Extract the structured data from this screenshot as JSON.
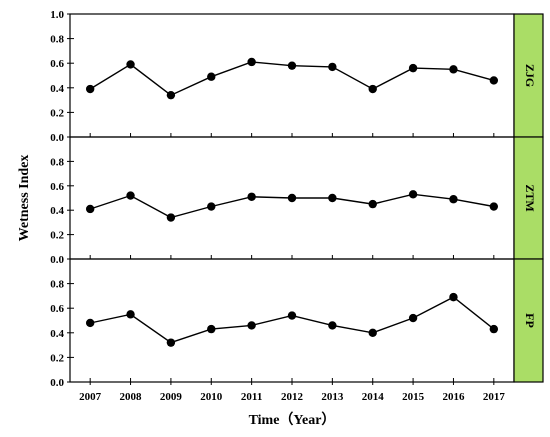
{
  "chart_data": {
    "type": "line",
    "layout": "faceted-vertical",
    "x": [
      2007,
      2008,
      2009,
      2010,
      2011,
      2012,
      2013,
      2014,
      2015,
      2016,
      2017
    ],
    "xlabel": "Time（Year）",
    "ylabel": "Wetness Index",
    "x_tick_labels": [
      "2007",
      "2008",
      "2009",
      "2010",
      "2011",
      "2012",
      "2013",
      "2014",
      "2015",
      "2016",
      "2017"
    ],
    "strip_color": "#aadd66",
    "line_color": "#000000",
    "marker": "filled-circle",
    "panels": [
      {
        "name": "ZJG",
        "ylim": [
          0,
          1.0
        ],
        "y_tick_labels": [
          "0.0",
          "0.2",
          "0.4",
          "0.6",
          "0.8",
          "1.0"
        ],
        "values": [
          0.39,
          0.59,
          0.34,
          0.49,
          0.61,
          0.58,
          0.57,
          0.39,
          0.56,
          0.55,
          0.46
        ]
      },
      {
        "name": "ZTM",
        "ylim": [
          0,
          1.0
        ],
        "y_tick_labels": [
          "0.0",
          "0.2",
          "0.4",
          "0.6",
          "0.8"
        ],
        "values": [
          0.41,
          0.52,
          0.34,
          0.43,
          0.51,
          0.5,
          0.5,
          0.45,
          0.53,
          0.49,
          0.43
        ]
      },
      {
        "name": "FP",
        "ylim": [
          0,
          1.0
        ],
        "y_tick_labels": [
          "0.0",
          "0.2",
          "0.4",
          "0.6",
          "0.8"
        ],
        "values": [
          0.48,
          0.55,
          0.32,
          0.43,
          0.46,
          0.54,
          0.46,
          0.4,
          0.52,
          0.69,
          0.43
        ]
      }
    ]
  }
}
